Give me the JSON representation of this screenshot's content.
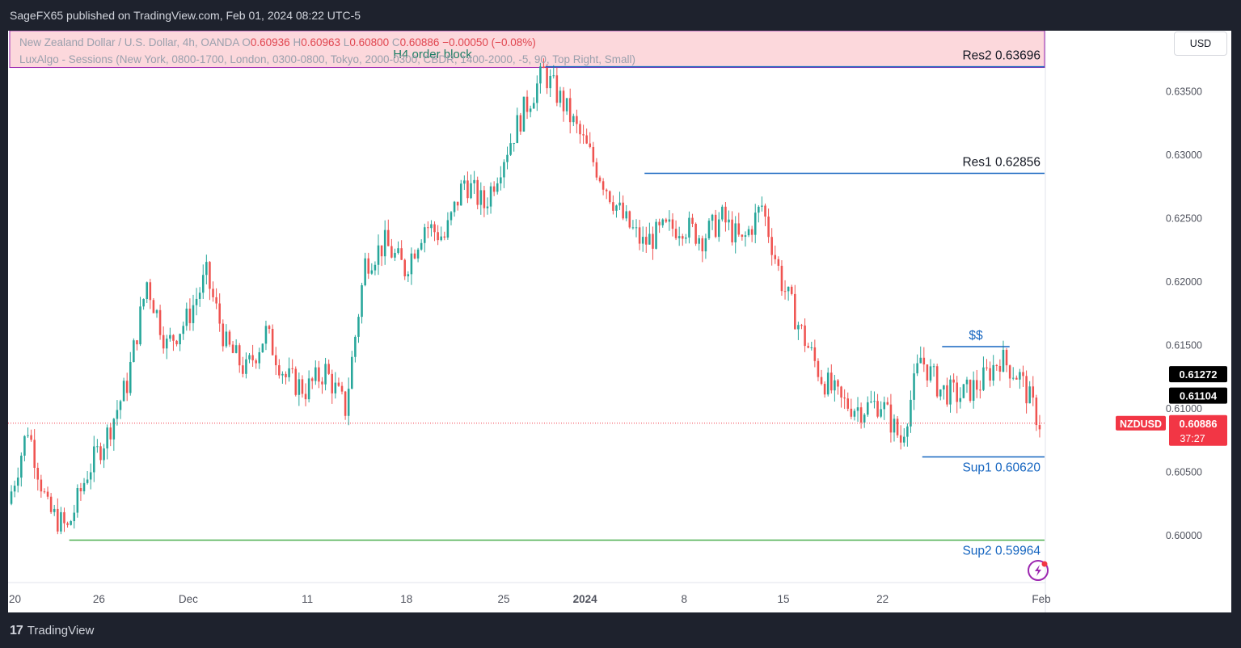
{
  "header": {
    "published": "SageFX65 published on TradingView.com, Feb 01, 2024 08:22 UTC-5"
  },
  "footer": {
    "brand_mark": "17",
    "brand": "TradingView"
  },
  "legend": {
    "symbol_line": "New Zealand Dollar / U.S. Dollar, 4h, OANDA",
    "o_label": "O",
    "o_value": "0.60936",
    "h_label": "H",
    "h_value": "0.60963",
    "l_label": "L",
    "l_value": "0.60800",
    "c_label": "C",
    "c_value": "0.60886",
    "change": "−0.00050 (−0.08%)",
    "indicator": "LuxAlgo - Sessions (New York, 0800-1700, London, 0300-0800, Tokyo, 2000-0300, CBDR, 1400-2000, -5, 90, Top Right, Small)"
  },
  "currency_button": "USD",
  "colors": {
    "up": "#26a69a",
    "down": "#ef5350",
    "level_line": "#1565c0",
    "sup2_line": "#4caf50",
    "order_block_fill": "#fcd8dc",
    "order_block_border": "#9c27b0",
    "price_tag": "#f23645",
    "level_tag": "#000000"
  },
  "chart_data": {
    "type": "candlestick",
    "symbol": "NZDUSD",
    "timeframe": "4h",
    "ylim": [
      0.5963,
      0.6398
    ],
    "y_ticks": [
      {
        "value": 0.635,
        "label": "0.63500"
      },
      {
        "value": 0.63,
        "label": "0.63000"
      },
      {
        "value": 0.625,
        "label": "0.62500"
      },
      {
        "value": 0.62,
        "label": "0.62000"
      },
      {
        "value": 0.615,
        "label": "0.61500"
      },
      {
        "value": 0.61,
        "label": "0.61000"
      },
      {
        "value": 0.605,
        "label": "0.60500"
      },
      {
        "value": 0.6,
        "label": "0.60000"
      }
    ],
    "x_ticks": [
      "20",
      "26",
      "Dec",
      "11",
      "18",
      "25",
      "2024",
      "8",
      "15",
      "22",
      "Feb"
    ],
    "path": [
      [
        "Nov 20",
        0.6025
      ],
      [
        "Nov 21",
        0.6085
      ],
      [
        "Nov 22",
        0.602
      ],
      [
        "Nov 23",
        0.6005
      ],
      [
        "Nov 24",
        0.605
      ],
      [
        "Nov 27",
        0.608
      ],
      [
        "Nov 28",
        0.612
      ],
      [
        "Nov 29",
        0.62
      ],
      [
        "Nov 30",
        0.615
      ],
      [
        "Dec 1",
        0.617
      ],
      [
        "Dec 4",
        0.6205
      ],
      [
        "Dec 5",
        0.615
      ],
      [
        "Dec 6",
        0.613
      ],
      [
        "Dec 7",
        0.616
      ],
      [
        "Dec 8",
        0.6125
      ],
      [
        "Dec 11",
        0.6115
      ],
      [
        "Dec 12",
        0.613
      ],
      [
        "Dec 13",
        0.61
      ],
      [
        "Dec 14",
        0.6215
      ],
      [
        "Dec 15",
        0.623
      ],
      [
        "Dec 18",
        0.621
      ],
      [
        "Dec 19",
        0.6245
      ],
      [
        "Dec 20",
        0.6235
      ],
      [
        "Dec 21",
        0.628
      ],
      [
        "Dec 22",
        0.626
      ],
      [
        "Dec 26",
        0.63
      ],
      [
        "Dec 27",
        0.6335
      ],
      [
        "Dec 28",
        0.6365
      ],
      [
        "Dec 29",
        0.634
      ],
      [
        "Jan 1",
        0.631
      ],
      [
        "Jan 2",
        0.628
      ],
      [
        "Jan 3",
        0.625
      ],
      [
        "Jan 4",
        0.623
      ],
      [
        "Jan 5",
        0.624
      ],
      [
        "Jan 8",
        0.6245
      ],
      [
        "Jan 9",
        0.6235
      ],
      [
        "Jan 10",
        0.625
      ],
      [
        "Jan 11",
        0.623
      ],
      [
        "Jan 12",
        0.626
      ],
      [
        "Jan 15",
        0.62
      ],
      [
        "Jan 16",
        0.616
      ],
      [
        "Jan 17",
        0.6125
      ],
      [
        "Jan 18",
        0.6105
      ],
      [
        "Jan 19",
        0.61
      ],
      [
        "Jan 22",
        0.6105
      ],
      [
        "Jan 23",
        0.6075
      ],
      [
        "Jan 24",
        0.614
      ],
      [
        "Jan 25",
        0.6115
      ],
      [
        "Jan 26",
        0.611
      ],
      [
        "Jan 29",
        0.612
      ],
      [
        "Jan 30",
        0.614
      ],
      [
        "Jan 31",
        0.6125
      ],
      [
        "Feb 1",
        0.6089
      ]
    ],
    "levels": [
      {
        "name": "Res2",
        "label": "Res2 0.63696",
        "value": 0.63696,
        "start": "Dec 28"
      },
      {
        "name": "Res1",
        "label": "Res1 0.62856",
        "value": 0.62856,
        "start": "Jan 4"
      },
      {
        "name": "Sup1",
        "label": "Sup1  0.60620",
        "value": 0.6062,
        "start": "Jan 24"
      },
      {
        "name": "Sup2",
        "label": "Sup2 0.59964",
        "value": 0.59964,
        "start": "Nov 23"
      }
    ],
    "liquidity": {
      "label": "$$",
      "value": 0.6149,
      "start": "Jan 25",
      "end": "Jan 30"
    },
    "order_block": {
      "label": "H4 order block",
      "top": 0.6398,
      "bottom": 0.6369
    },
    "price_tags": [
      {
        "label": "0.61272",
        "value": 0.61272,
        "kind": "level"
      },
      {
        "label": "0.61104",
        "value": 0.61104,
        "kind": "level"
      },
      {
        "symbol": "NZDUSD",
        "label": "0.60886",
        "countdown": "37:27",
        "value": 0.60886,
        "kind": "last"
      }
    ]
  }
}
